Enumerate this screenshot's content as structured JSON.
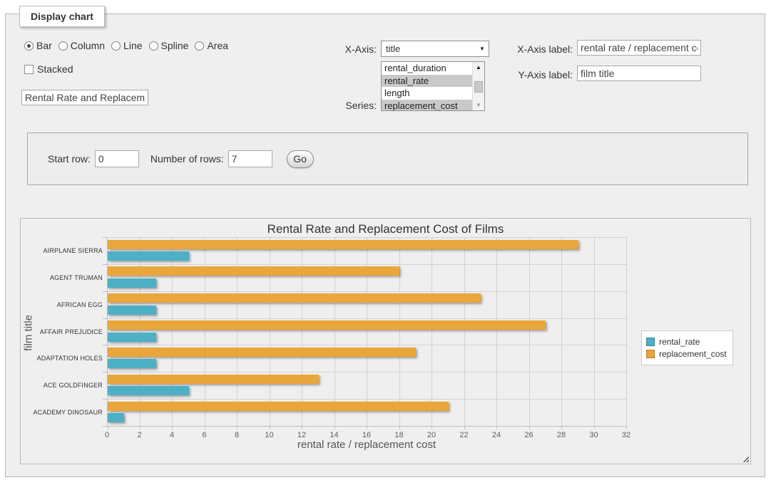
{
  "panel": {
    "legend": "Display chart"
  },
  "chart_types": [
    {
      "label": "Bar",
      "selected": true
    },
    {
      "label": "Column",
      "selected": false
    },
    {
      "label": "Line",
      "selected": false
    },
    {
      "label": "Spline",
      "selected": false
    },
    {
      "label": "Area",
      "selected": false
    }
  ],
  "stacked": {
    "label": "Stacked",
    "checked": false
  },
  "title_input": {
    "value": "Rental Rate and Replacement Cost of Films"
  },
  "x_axis": {
    "label": "X-Axis:",
    "selected": "title",
    "arrow_icon": "▼"
  },
  "series_select": {
    "label": "Series:",
    "options": [
      {
        "label": "rental_duration",
        "selected": false
      },
      {
        "label": "rental_rate",
        "selected": true
      },
      {
        "label": "length",
        "selected": false
      },
      {
        "label": "replacement_cost",
        "selected": true
      }
    ],
    "scroll_up_icon": "▲",
    "scroll_down_icon": "▼"
  },
  "x_axis_label_field": {
    "label": "X-Axis label:",
    "value": "rental rate / replacement cost"
  },
  "y_axis_label_field": {
    "label": "Y-Axis label:",
    "value": "film title"
  },
  "row_controls": {
    "start_row_label": "Start row:",
    "start_row_value": "0",
    "num_rows_label": "Number of rows:",
    "num_rows_value": "7",
    "go_label": "Go"
  },
  "chart_data": {
    "type": "bar",
    "title": "Rental Rate and Replacement Cost of Films",
    "xlabel": "rental rate / replacement cost",
    "ylabel": "film title",
    "categories": [
      "AIRPLANE SIERRA",
      "AGENT TRUMAN",
      "AFRICAN EGG",
      "AFFAIR PREJUDICE",
      "ADAPTATION HOLES",
      "ACE GOLDFINGER",
      "ACADEMY DINOSAUR"
    ],
    "series": [
      {
        "name": "rental_rate",
        "color": "#4db0c5",
        "values": [
          4.99,
          2.99,
          2.99,
          2.99,
          2.99,
          4.99,
          0.99
        ]
      },
      {
        "name": "replacement_cost",
        "color": "#e9a63b",
        "values": [
          28.99,
          17.99,
          22.99,
          26.99,
          18.99,
          12.99,
          20.99
        ]
      }
    ],
    "xlim": [
      0,
      32
    ],
    "xticks": [
      0,
      2,
      4,
      6,
      8,
      10,
      12,
      14,
      16,
      18,
      20,
      22,
      24,
      26,
      28,
      30,
      32
    ],
    "grid": true,
    "legend_position": "right"
  }
}
